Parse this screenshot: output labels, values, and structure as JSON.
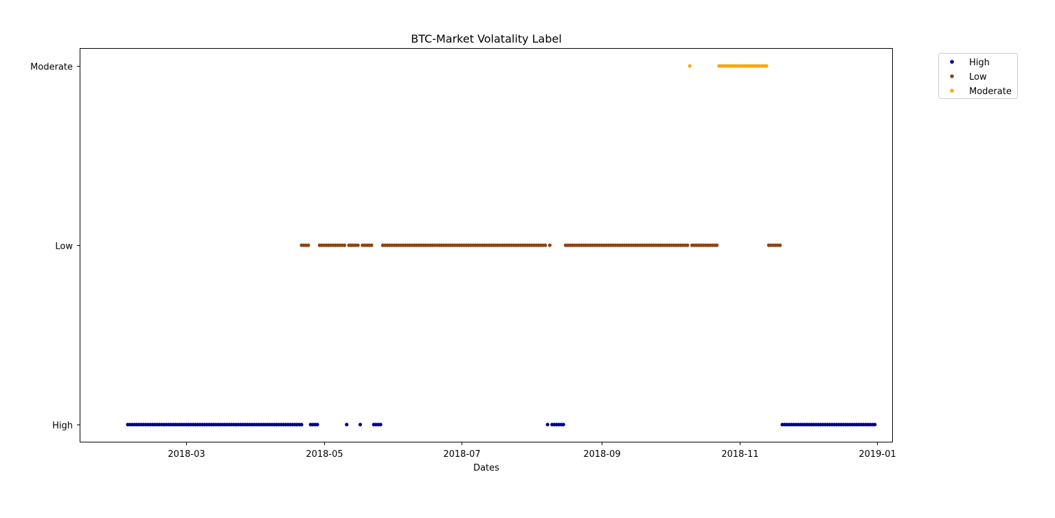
{
  "chart_data": {
    "type": "scatter",
    "title": "BTC-Market Volatality Label",
    "xlabel": "Dates",
    "ylabel": "",
    "x_type": "date",
    "xlim": [
      "2018-01-13",
      "2019-01-08"
    ],
    "x_ticks": [
      "2018-03",
      "2018-05",
      "2018-07",
      "2018-09",
      "2018-11",
      "2019-01"
    ],
    "x_tick_dates": [
      "2018-03-01",
      "2018-05-01",
      "2018-07-01",
      "2018-09-01",
      "2018-11-01",
      "2019-01-01"
    ],
    "y_categories": [
      "High",
      "Low",
      "Moderate"
    ],
    "grid": false,
    "legend": {
      "position": "outside-top-right",
      "entries": [
        "High",
        "Low",
        "Moderate"
      ]
    },
    "series": [
      {
        "name": "High",
        "color": "#00008b",
        "y": "High",
        "ranges": [
          [
            "2018-02-03",
            "2018-04-21"
          ],
          [
            "2018-04-25",
            "2018-04-28"
          ],
          [
            "2018-05-11",
            "2018-05-11"
          ],
          [
            "2018-05-17",
            "2018-05-17"
          ],
          [
            "2018-05-23",
            "2018-05-26"
          ],
          [
            "2018-08-08",
            "2018-08-08"
          ],
          [
            "2018-08-10",
            "2018-08-15"
          ],
          [
            "2018-11-20",
            "2018-12-31"
          ]
        ]
      },
      {
        "name": "Low",
        "color": "#8b4513",
        "y": "Low",
        "ranges": [
          [
            "2018-04-21",
            "2018-04-24"
          ],
          [
            "2018-04-29",
            "2018-05-10"
          ],
          [
            "2018-05-12",
            "2018-05-16"
          ],
          [
            "2018-05-18",
            "2018-05-22"
          ],
          [
            "2018-05-27",
            "2018-08-07"
          ],
          [
            "2018-08-09",
            "2018-08-09"
          ],
          [
            "2018-08-16",
            "2018-10-09"
          ],
          [
            "2018-10-11",
            "2018-10-22"
          ],
          [
            "2018-11-14",
            "2018-11-19"
          ]
        ]
      },
      {
        "name": "Moderate",
        "color": "#ffa500",
        "y": "Moderate",
        "ranges": [
          [
            "2018-10-10",
            "2018-10-10"
          ],
          [
            "2018-10-23",
            "2018-11-13"
          ]
        ]
      }
    ]
  }
}
